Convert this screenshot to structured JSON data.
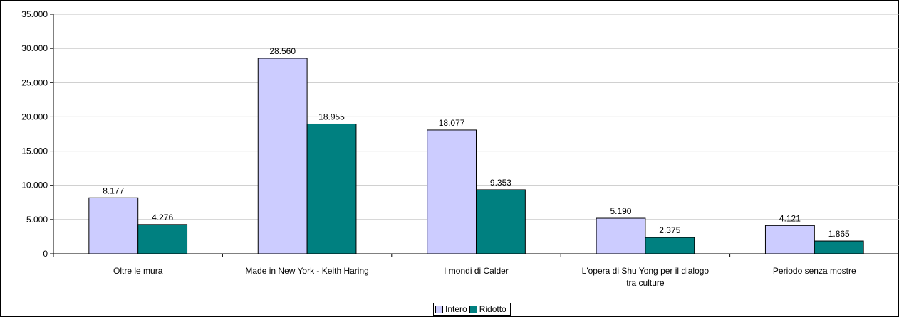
{
  "chart_data": {
    "type": "bar",
    "categories": [
      [
        "Oltre le mura"
      ],
      [
        "Made in New York - Keith Haring"
      ],
      [
        "I mondi di Calder"
      ],
      [
        "L'opera di Shu Yong per il dialogo",
        "tra culture"
      ],
      [
        "Periodo senza mostre"
      ]
    ],
    "series": [
      {
        "name": "Intero",
        "color": "#ccccff",
        "values": [
          8177,
          28560,
          18077,
          5190,
          4121
        ],
        "labels": [
          "8.177",
          "28.560",
          "18.077",
          "5.190",
          "4.121"
        ]
      },
      {
        "name": "Ridotto",
        "color": "#008080",
        "values": [
          4276,
          18955,
          9353,
          2375,
          1865
        ],
        "labels": [
          "4.276",
          "18.955",
          "9.353",
          "2.375",
          "1.865"
        ]
      }
    ],
    "ylim": [
      0,
      35000
    ],
    "yticks": [
      0,
      5000,
      10000,
      15000,
      20000,
      25000,
      30000,
      35000
    ],
    "ytick_labels": [
      "0",
      "5.000",
      "10.000",
      "15.000",
      "20.000",
      "25.000",
      "30.000",
      "35.000"
    ],
    "grid": true,
    "legend_position": "bottom"
  }
}
